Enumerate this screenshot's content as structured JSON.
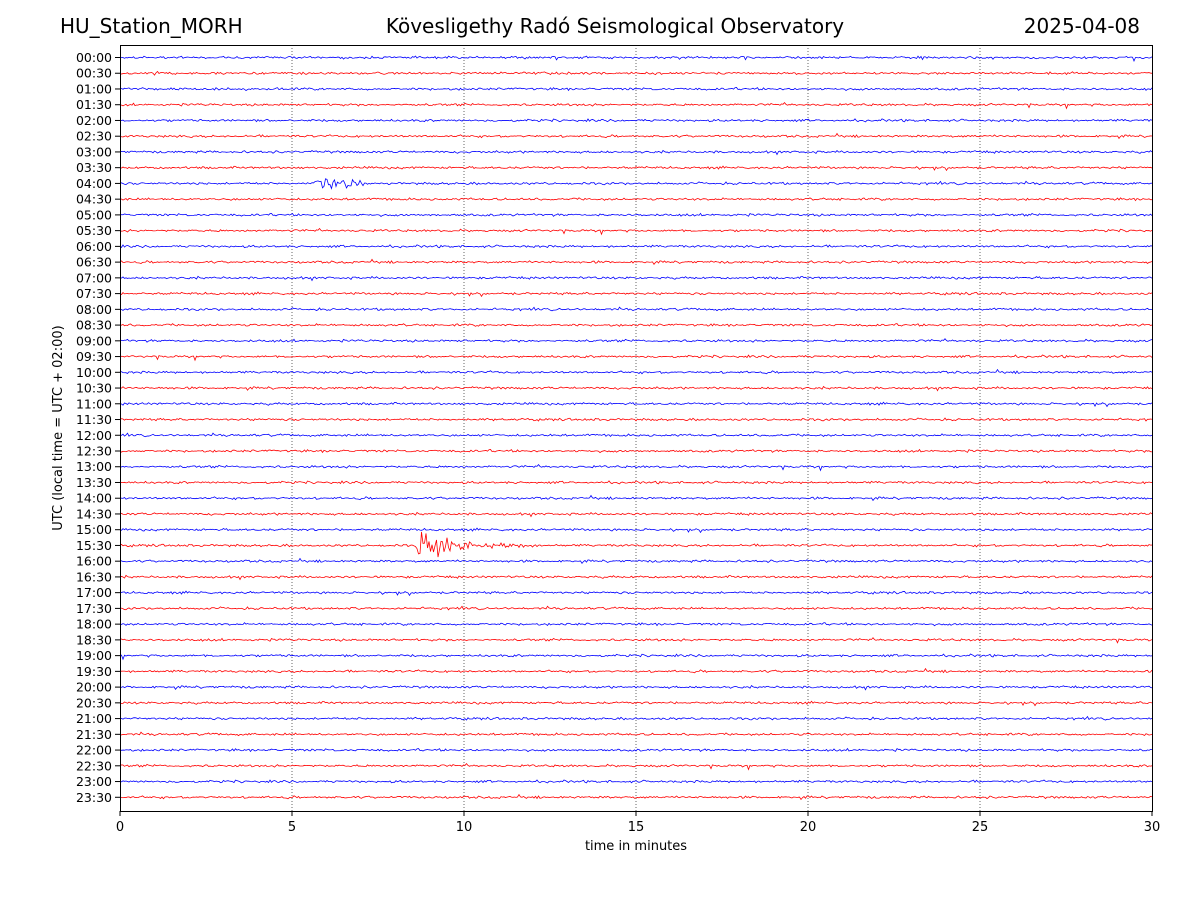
{
  "header": {
    "station": "HU_Station_MORH",
    "title": "Kövesligethy Radó Seismological Observatory",
    "date": "2025-04-08"
  },
  "chart_data": {
    "type": "line",
    "plot_kind": "seismic helicorder (drum plot)",
    "xlabel": "time in minutes",
    "ylabel": "UTC (local time = UTC + 02:00)",
    "xlim": [
      0,
      30
    ],
    "x_ticks": [
      "0",
      "5",
      "10",
      "15",
      "20",
      "25",
      "30"
    ],
    "grid": "vertical dotted lines at 5-minute intervals",
    "trace_colors": [
      "#0000ff",
      "#ff0000"
    ],
    "rows": [
      "00:00",
      "00:30",
      "01:00",
      "01:30",
      "02:00",
      "02:30",
      "03:00",
      "03:30",
      "04:00",
      "04:30",
      "05:00",
      "05:30",
      "06:00",
      "06:30",
      "07:00",
      "07:30",
      "08:00",
      "08:30",
      "09:00",
      "09:30",
      "10:00",
      "10:30",
      "11:00",
      "11:30",
      "12:00",
      "12:30",
      "13:00",
      "13:30",
      "14:00",
      "14:30",
      "15:00",
      "15:30",
      "16:00",
      "16:30",
      "17:00",
      "17:30",
      "18:00",
      "18:30",
      "19:00",
      "19:30",
      "20:00",
      "20:30",
      "21:00",
      "21:30",
      "22:00",
      "22:30",
      "23:00",
      "23:30"
    ],
    "events": [
      {
        "row": "04:00",
        "start_min": 5.5,
        "end_min": 7.8,
        "peak_amplitude": "small",
        "description_visible": ""
      },
      {
        "row": "15:30",
        "start_min": 8.6,
        "end_min": 12.0,
        "peak_amplitude": "large",
        "description_visible": ""
      }
    ],
    "noise_level": "low background noise on all traces"
  }
}
